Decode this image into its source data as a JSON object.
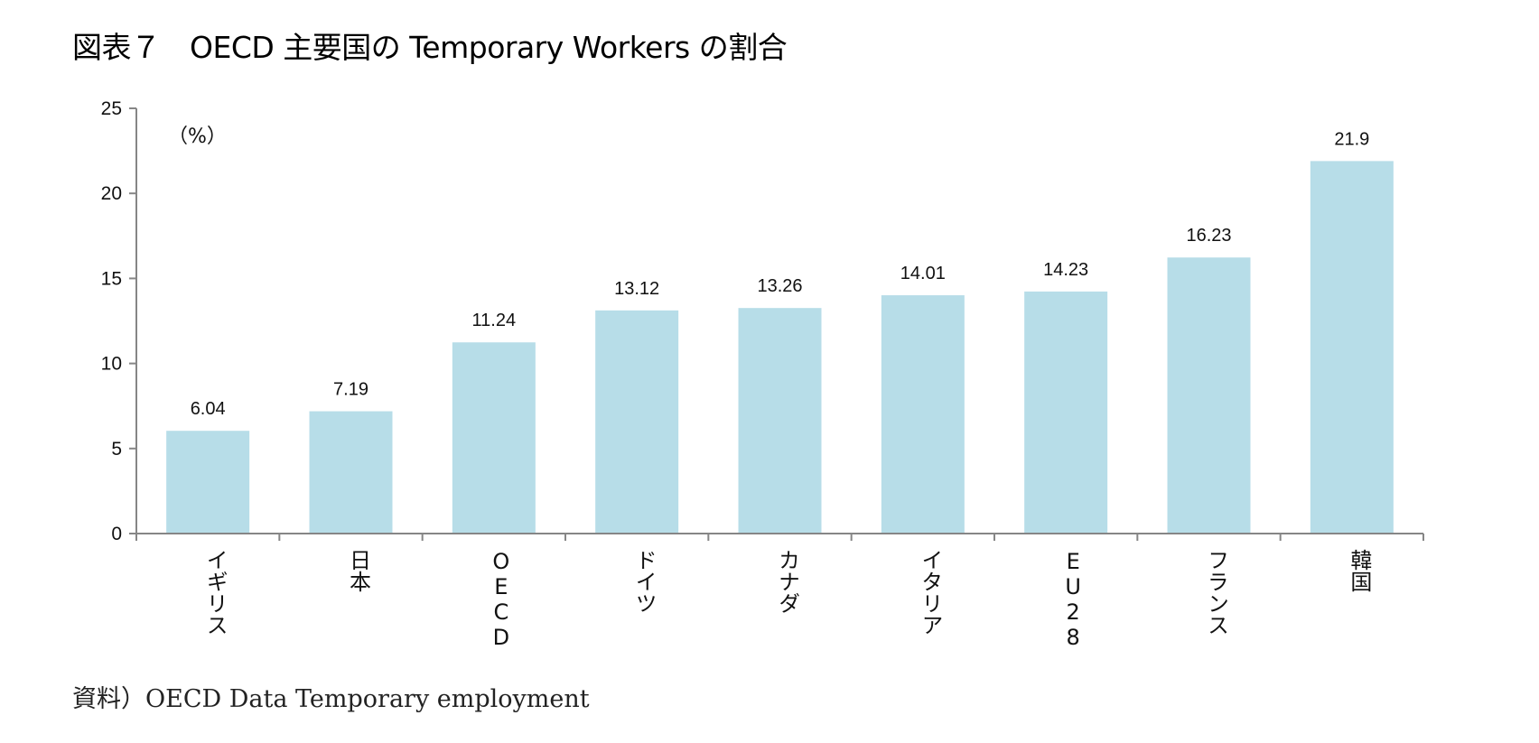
{
  "title": "図表７　OECD 主要国の Temporary Workers の割合",
  "source": "資料）OECD Data Temporary employment",
  "chart_data": {
    "type": "bar",
    "unit_label": "（%）",
    "categories": [
      "イギリス",
      "日本",
      "OECD",
      "ドイツ",
      "カナダ",
      "イタリア",
      "EU28",
      "フランス",
      "韓国"
    ],
    "values": [
      6.04,
      7.19,
      11.24,
      13.12,
      13.26,
      14.01,
      14.23,
      16.23,
      21.9
    ],
    "value_labels": [
      "6.04",
      "7.19",
      "11.24",
      "13.12",
      "13.26",
      "14.01",
      "14.23",
      "16.23",
      "21.9"
    ],
    "yticks": [
      0,
      5,
      10,
      15,
      20,
      25
    ],
    "ylim": [
      0,
      25
    ],
    "bar_color": "#b7dde8",
    "grid": false
  }
}
